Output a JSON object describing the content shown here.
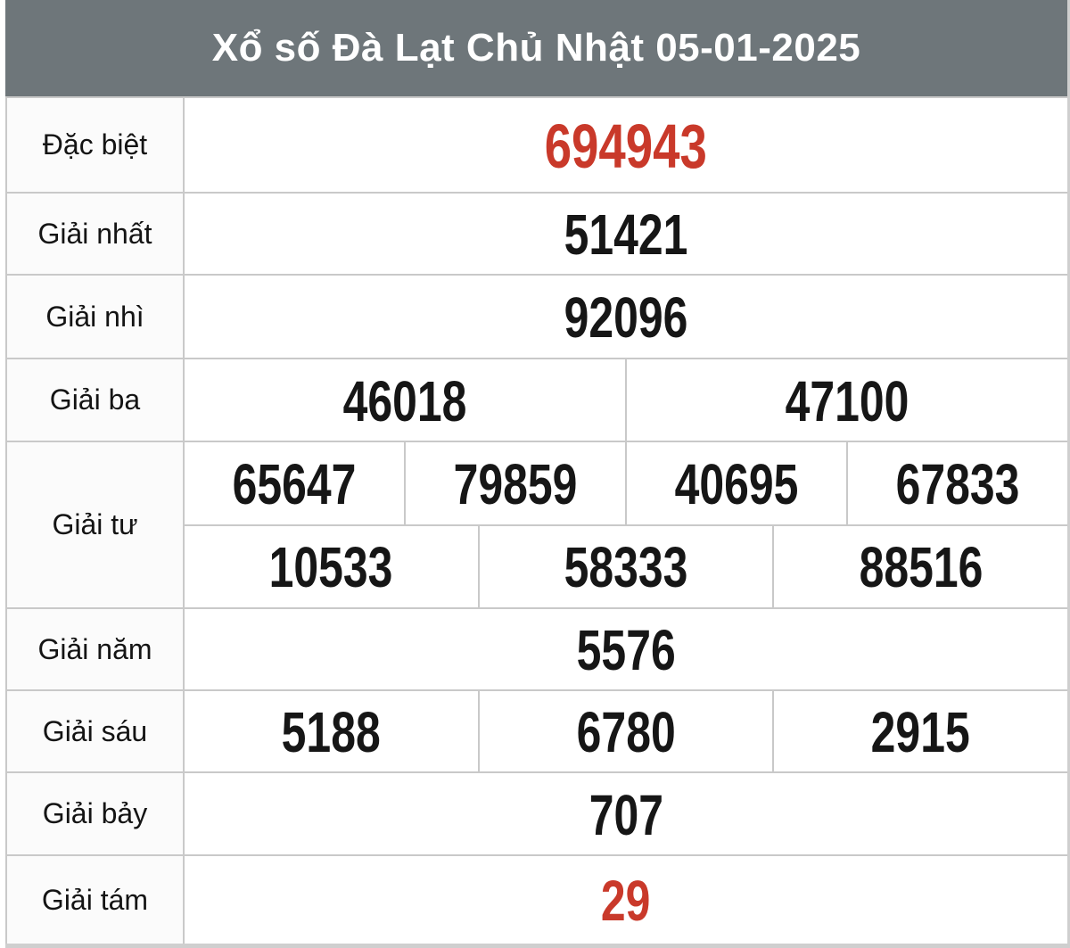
{
  "title": "Xổ số Đà Lạt Chủ Nhật 05-01-2025",
  "colors": {
    "header_bg": "#6e767a",
    "header_text": "#ffffff",
    "border": "#c9c9c9",
    "outer_border": "#cfcfcf",
    "number": "#161616",
    "accent": "#c9392a",
    "label_bg": "#fbfbfb",
    "cell_bg": "#ffffff"
  },
  "prizes": [
    {
      "label": "Đặc biệt",
      "numbers": [
        "694943"
      ]
    },
    {
      "label": "Giải nhất",
      "numbers": [
        "51421"
      ]
    },
    {
      "label": "Giải nhì",
      "numbers": [
        "92096"
      ]
    },
    {
      "label": "Giải ba",
      "numbers": [
        "46018",
        "47100"
      ]
    },
    {
      "label": "Giải tư",
      "numbers": [
        "65647",
        "79859",
        "40695",
        "67833",
        "10533",
        "58333",
        "88516"
      ]
    },
    {
      "label": "Giải năm",
      "numbers": [
        "5576"
      ]
    },
    {
      "label": "Giải sáu",
      "numbers": [
        "5188",
        "6780",
        "2915"
      ]
    },
    {
      "label": "Giải bảy",
      "numbers": [
        "707"
      ]
    },
    {
      "label": "Giải tám",
      "numbers": [
        "29"
      ]
    }
  ]
}
